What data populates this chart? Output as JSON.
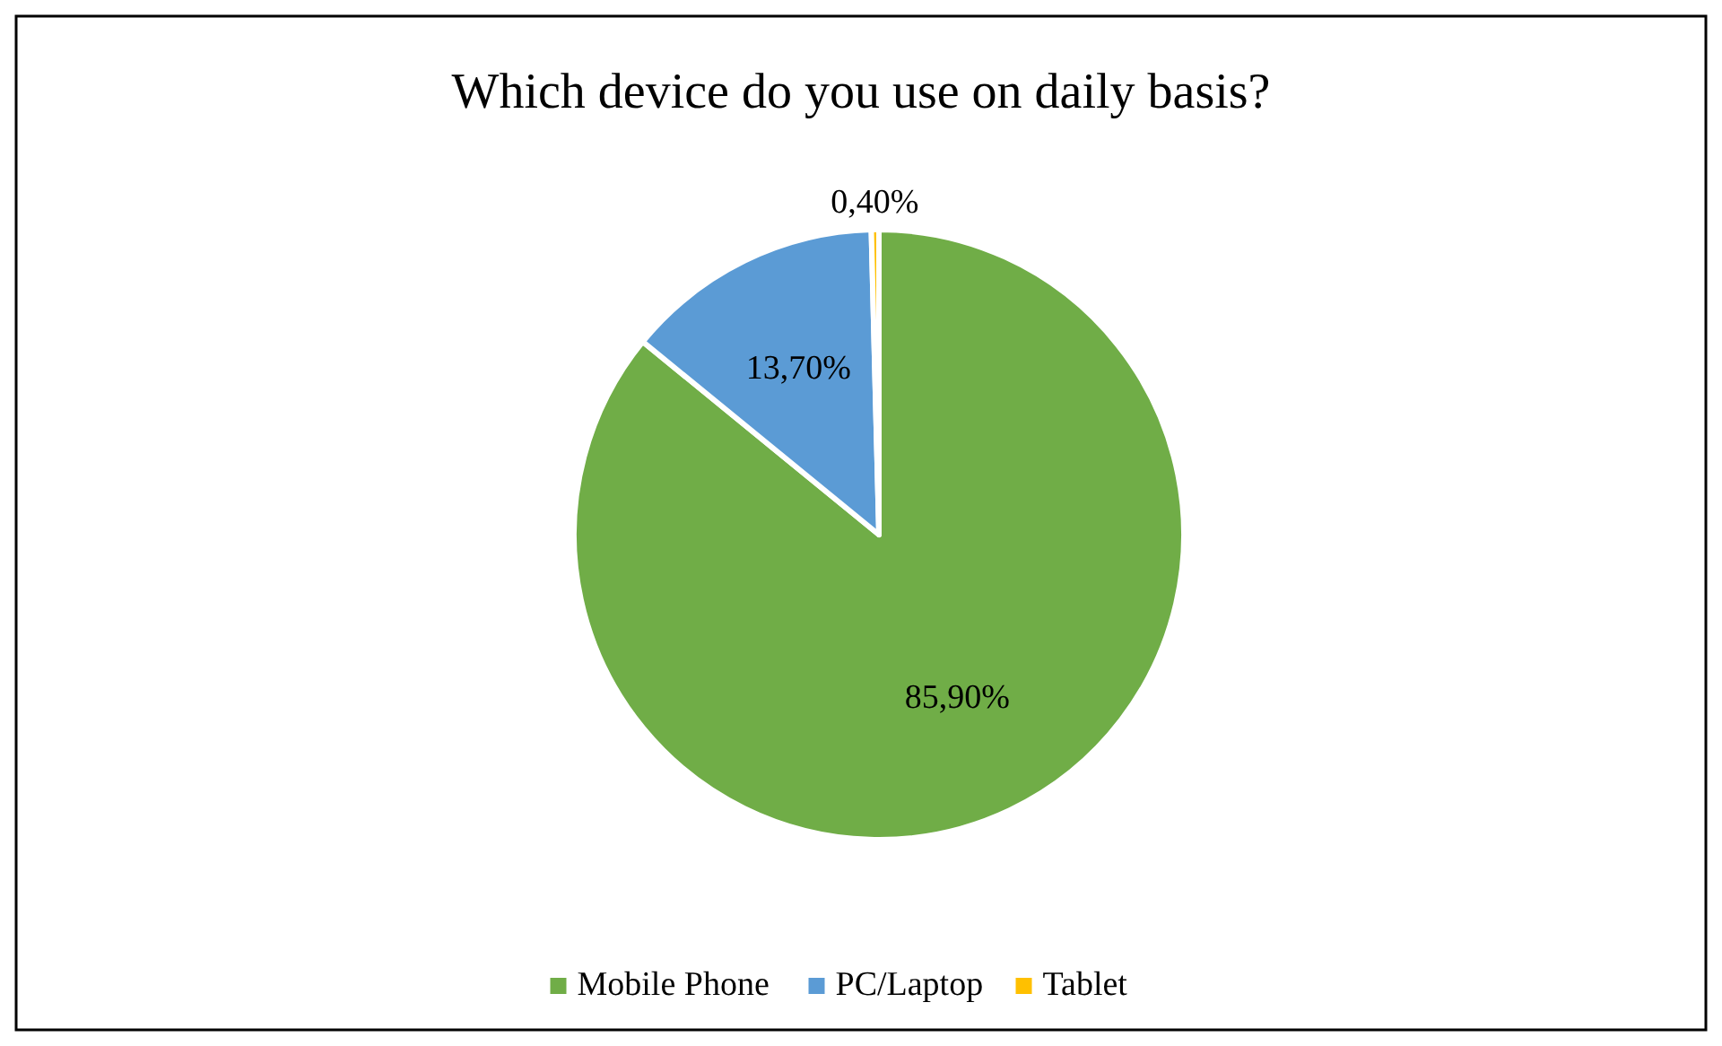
{
  "chart_data": {
    "type": "pie",
    "title": "Which device do you use on daily basis?",
    "categories": [
      "Mobile Phone",
      "PC/Laptop",
      "Tablet"
    ],
    "values": [
      85.9,
      13.7,
      0.4
    ],
    "colors": [
      "#70ad47",
      "#5b9bd5",
      "#ffc000"
    ],
    "value_labels": [
      "85,90%",
      "13,70%",
      "0,40%"
    ],
    "legend": "bottom"
  }
}
